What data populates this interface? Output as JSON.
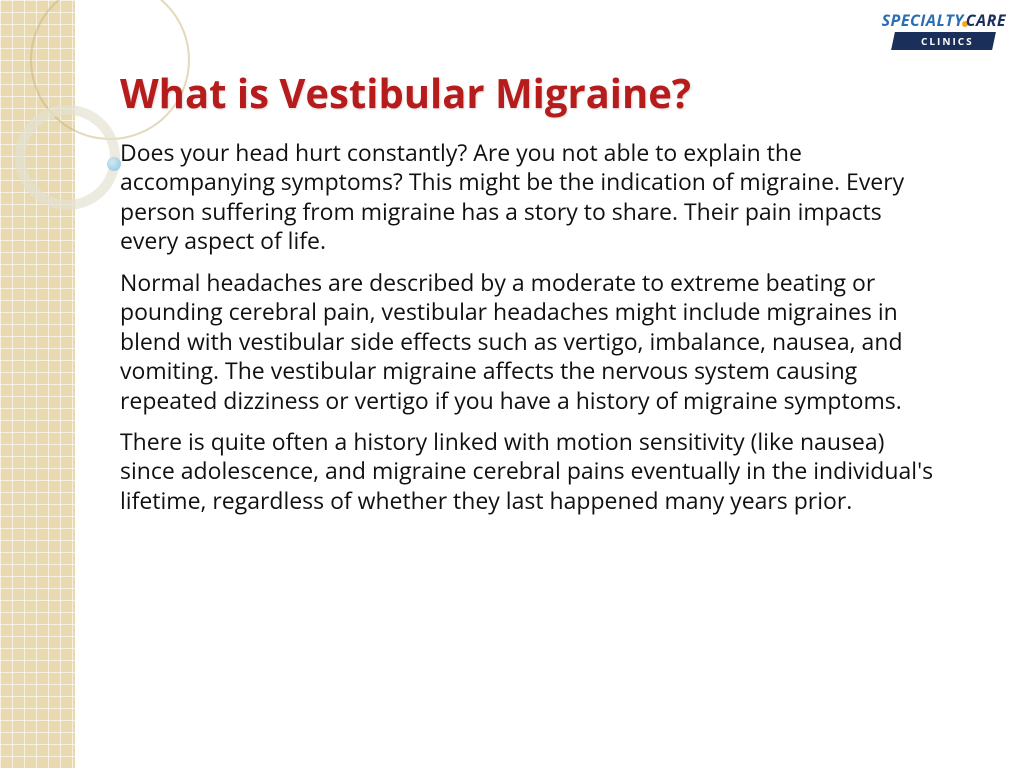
{
  "slide": {
    "title": "What is Vestibular Migraine?",
    "paragraphs": [
      "Does your head hurt constantly? Are you not able to explain the accompanying symptoms? This might be the indication of migraine. Every person suffering from migraine has a story to share. Their pain impacts every aspect of life.",
      "Normal headaches are described by a moderate to extreme beating or pounding cerebral pain, vestibular headaches might include migraines in blend with vestibular side effects such as vertigo, imbalance, nausea, and vomiting. The vestibular migraine affects the nervous system causing repeated dizziness or vertigo if you have a history of migraine symptoms.",
      "There is quite often a history linked with motion sensitivity (like nausea) since adolescence, and migraine cerebral pains eventually in the individual's lifetime, regardless of whether they last happened many years prior."
    ]
  },
  "logo": {
    "word1": "SPECIALTY",
    "word2": "CARE",
    "subtitle": "CLINICS"
  },
  "colors": {
    "title_color": "#b71c1c",
    "body_color": "#111111",
    "band_color": "#e8d9b0",
    "logo_blue": "#2a6fb5",
    "logo_navy": "#1a2f5a",
    "logo_orange": "#f5a623"
  }
}
